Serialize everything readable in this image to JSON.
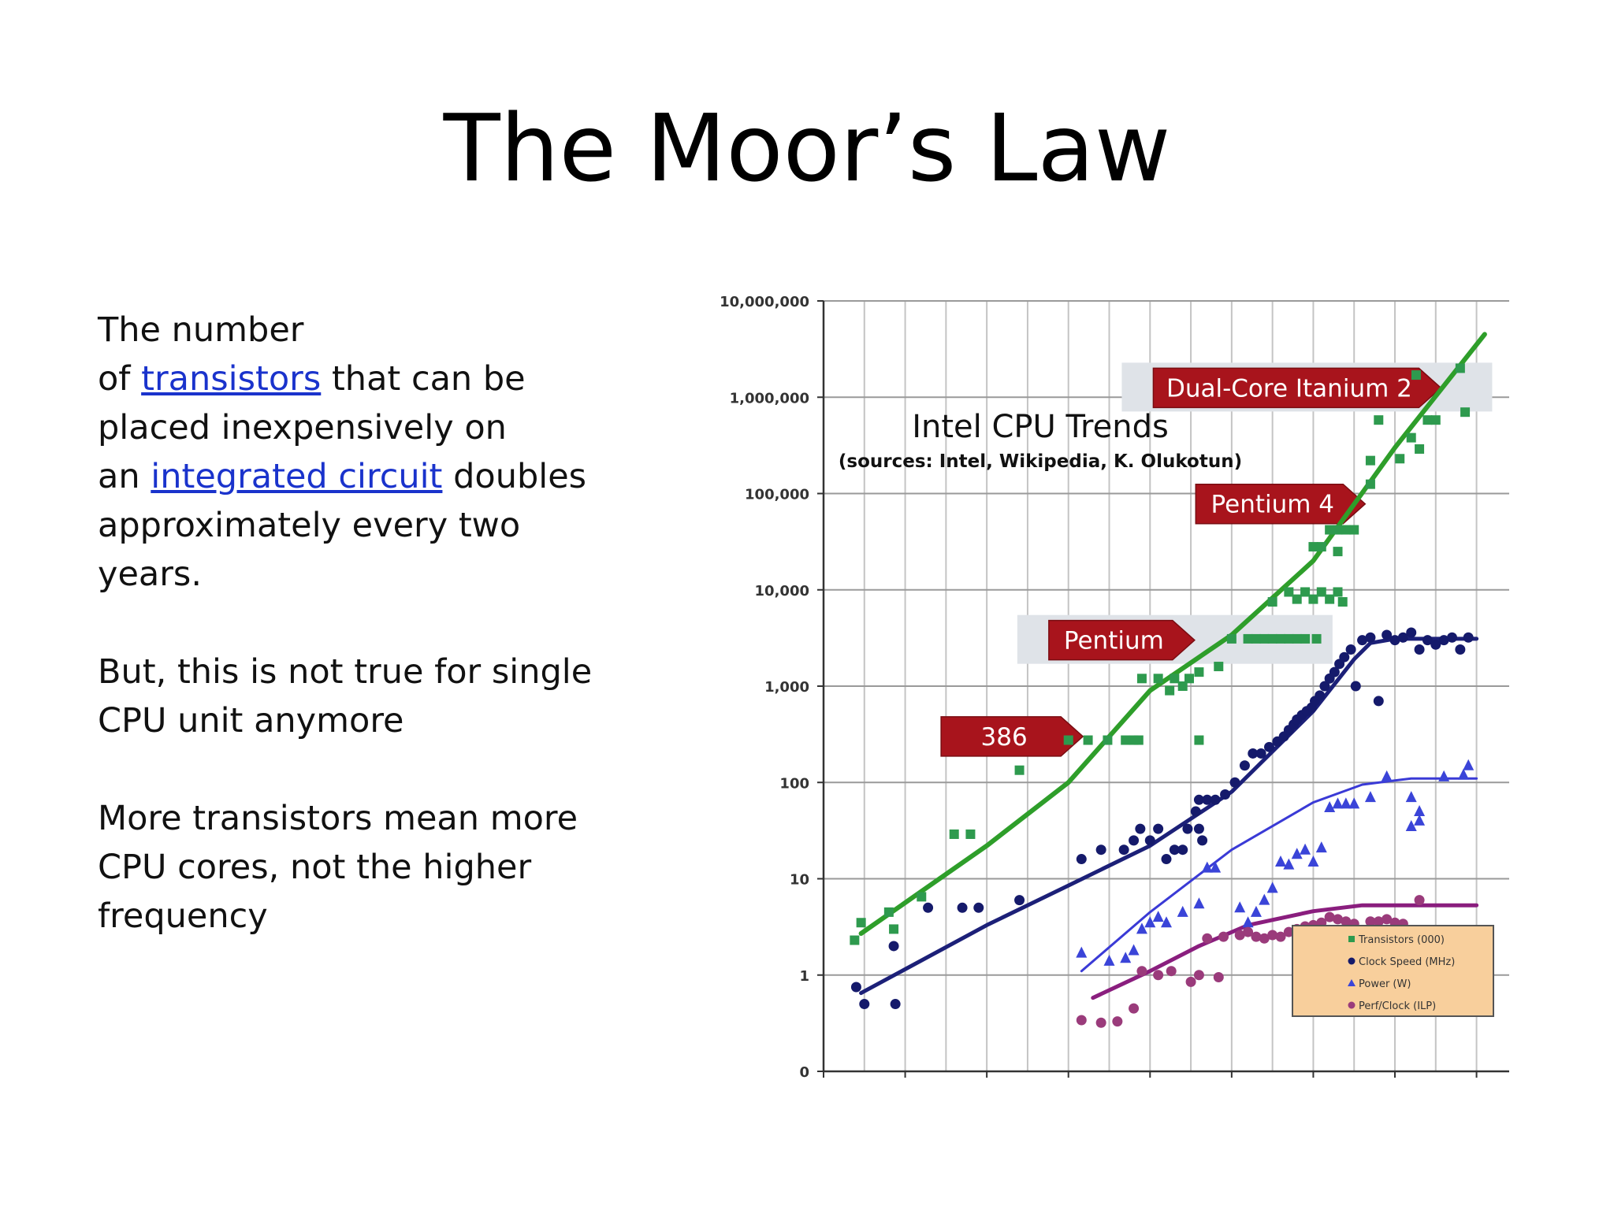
{
  "slide": {
    "title": "The Moor’s Law",
    "paragraph1": {
      "line1": "The number",
      "line2_before": "of ",
      "link1": "transistors",
      "line2_after": " that can be",
      "line3": "placed inexpensively on",
      "line4_before": "an ",
      "link2": "integrated circuit",
      "line4_after": " doubles",
      "line5": "approximately every two",
      "line6": "years."
    },
    "paragraph2": {
      "line1": "But, this is not true for single",
      "line2": "CPU unit anymore"
    },
    "paragraph3": {
      "line1": "More transistors mean more",
      "line2": "CPU cores, not the higher",
      "line3": "frequency"
    },
    "link_color": "#1a33cc"
  },
  "chart_data": {
    "type": "scatter",
    "title": "Intel CPU Trends",
    "subtitle": "(sources: Intel, Wikipedia, K. Olukotun)",
    "y_scale": "log",
    "ylim": [
      0.1,
      10000000
    ],
    "xlim": [
      1970,
      2012
    ],
    "x_ticks": [
      1970,
      1975,
      1980,
      1985,
      1990,
      1995,
      2000,
      2005,
      2010
    ],
    "y_ticks": [
      {
        "value": 0.1,
        "label": "0"
      },
      {
        "value": 1,
        "label": "1"
      },
      {
        "value": 10,
        "label": "10"
      },
      {
        "value": 100,
        "label": "100"
      },
      {
        "value": 1000,
        "label": "1,000"
      },
      {
        "value": 10000,
        "label": "10,000"
      },
      {
        "value": 100000,
        "label": "100,000"
      },
      {
        "value": 1000000,
        "label": "1,000,000"
      },
      {
        "value": 10000000,
        "label": "10,000,000"
      }
    ],
    "grid": true,
    "legend_placement": "bottom-right",
    "series": [
      {
        "name": "Transistors (000)",
        "marker": "square",
        "color": "#2e9a4e",
        "line_color": "#2e9e2a",
        "points": [
          [
            1971.9,
            2.3
          ],
          [
            1972.3,
            3.5
          ],
          [
            1974,
            4.5
          ],
          [
            1974.3,
            3
          ],
          [
            1976,
            6.5
          ],
          [
            1978,
            29
          ],
          [
            1979,
            29
          ],
          [
            1982,
            134
          ],
          [
            1985,
            275
          ],
          [
            1986.2,
            275
          ],
          [
            1987.4,
            275
          ],
          [
            1988.5,
            275
          ],
          [
            1989,
            275
          ],
          [
            1989.3,
            275
          ],
          [
            1989.5,
            1200
          ],
          [
            1990.5,
            1200
          ],
          [
            1991.2,
            900
          ],
          [
            1991.5,
            1200
          ],
          [
            1992,
            1000
          ],
          [
            1992.4,
            1200
          ],
          [
            1993,
            1400
          ],
          [
            1993,
            275
          ],
          [
            1994.2,
            1600
          ],
          [
            1995,
            3100
          ],
          [
            1996,
            3100
          ],
          [
            1996.5,
            3100
          ],
          [
            1997,
            3100
          ],
          [
            1997.5,
            3100
          ],
          [
            1998,
            3100
          ],
          [
            1998.5,
            3100
          ],
          [
            1999,
            3100
          ],
          [
            1999.5,
            3100
          ],
          [
            2000.2,
            3100
          ],
          [
            1997.5,
            7500
          ],
          [
            1998.5,
            9500
          ],
          [
            1999,
            8000
          ],
          [
            1999.5,
            9500
          ],
          [
            2000,
            8000
          ],
          [
            2000.5,
            9500
          ],
          [
            2001,
            8000
          ],
          [
            2001.5,
            9500
          ],
          [
            2001.8,
            7500
          ],
          [
            2000,
            28000
          ],
          [
            2000.5,
            28000
          ],
          [
            2001,
            42000
          ],
          [
            2001.5,
            42000
          ],
          [
            2002,
            42000
          ],
          [
            2002.5,
            42000
          ],
          [
            2001.5,
            25000
          ],
          [
            2003.5,
            125000
          ],
          [
            2004,
            580000
          ],
          [
            2003.5,
            220000
          ],
          [
            2005.3,
            230000
          ],
          [
            2006,
            380000
          ],
          [
            2006.5,
            290000
          ],
          [
            2007,
            580000
          ],
          [
            2007.5,
            580000
          ],
          [
            2006.3,
            1700000
          ],
          [
            2009,
            2000000
          ],
          [
            2009.3,
            700000
          ]
        ],
        "trend": [
          [
            1972.3,
            2.7
          ],
          [
            1980,
            22
          ],
          [
            1985,
            100
          ],
          [
            1990,
            900
          ],
          [
            1995,
            3400
          ],
          [
            2000,
            20000
          ],
          [
            2005,
            300000
          ],
          [
            2010.5,
            4500000
          ]
        ]
      },
      {
        "name": "Clock Speed (MHz)",
        "marker": "circle",
        "color": "#151a6b",
        "line_color": "#1c2078",
        "points": [
          [
            1972,
            0.75
          ],
          [
            1972.5,
            0.5
          ],
          [
            1974.4,
            0.5
          ],
          [
            1974.3,
            2
          ],
          [
            1976.4,
            5
          ],
          [
            1978.5,
            5
          ],
          [
            1979.5,
            5
          ],
          [
            1982,
            6
          ],
          [
            1985.8,
            16
          ],
          [
            1987,
            20
          ],
          [
            1988.4,
            20
          ],
          [
            1989,
            25
          ],
          [
            1989.4,
            33
          ],
          [
            1990,
            25
          ],
          [
            1990.5,
            33
          ],
          [
            1991,
            16
          ],
          [
            1991.5,
            20
          ],
          [
            1992,
            20
          ],
          [
            1992.3,
            33
          ],
          [
            1992.8,
            50
          ],
          [
            1993,
            66
          ],
          [
            1993.5,
            66
          ],
          [
            1993,
            33
          ],
          [
            1993.2,
            25
          ],
          [
            1994,
            66
          ],
          [
            1994.6,
            75
          ],
          [
            1995.2,
            100
          ],
          [
            1995.8,
            150
          ],
          [
            1996.3,
            200
          ],
          [
            1996.8,
            200
          ],
          [
            1997.3,
            233
          ],
          [
            1997.8,
            266
          ],
          [
            1998.2,
            300
          ],
          [
            1998.5,
            350
          ],
          [
            1998.8,
            400
          ],
          [
            1999,
            450
          ],
          [
            1999.3,
            500
          ],
          [
            1999.6,
            550
          ],
          [
            1999.9,
            600
          ],
          [
            2000.1,
            700
          ],
          [
            2000.4,
            800
          ],
          [
            2000.7,
            1000
          ],
          [
            2001,
            1200
          ],
          [
            2001.3,
            1400
          ],
          [
            2001.6,
            1700
          ],
          [
            2001.9,
            2000
          ],
          [
            2002.3,
            2400
          ],
          [
            2002.6,
            1000
          ],
          [
            2003,
            3000
          ],
          [
            2003.5,
            3200
          ],
          [
            2004,
            700
          ],
          [
            2004.5,
            3400
          ],
          [
            2005,
            3000
          ],
          [
            2005.5,
            3200
          ],
          [
            2006,
            3600
          ],
          [
            2006.5,
            2400
          ],
          [
            2007,
            3000
          ],
          [
            2007.5,
            2700
          ],
          [
            2008,
            3000
          ],
          [
            2008.5,
            3200
          ],
          [
            2009,
            2400
          ],
          [
            2009.5,
            3200
          ]
        ],
        "trend": [
          [
            1972.3,
            0.65
          ],
          [
            1980,
            3.3
          ],
          [
            1985,
            8.5
          ],
          [
            1990,
            22
          ],
          [
            1995,
            80
          ],
          [
            2000,
            550
          ],
          [
            2002.5,
            1900
          ],
          [
            2003.5,
            2800
          ],
          [
            2005,
            3100
          ],
          [
            2010,
            3100
          ]
        ]
      },
      {
        "name": "Power (W)",
        "marker": "triangle",
        "color": "#3a44d8",
        "line_color": "#3a3ad6",
        "points": [
          [
            1985.8,
            1.7
          ],
          [
            1987.5,
            1.4
          ],
          [
            1988.5,
            1.5
          ],
          [
            1989,
            1.8
          ],
          [
            1989.5,
            3
          ],
          [
            1990,
            3.5
          ],
          [
            1990.5,
            4
          ],
          [
            1991,
            3.5
          ],
          [
            1992,
            4.5
          ],
          [
            1993,
            5.5
          ],
          [
            1993.5,
            13
          ],
          [
            1994,
            13
          ],
          [
            1995.5,
            5
          ],
          [
            1996,
            3.5
          ],
          [
            1996.5,
            4.5
          ],
          [
            1997,
            6
          ],
          [
            1997.5,
            8
          ],
          [
            1998,
            15
          ],
          [
            1998.5,
            14
          ],
          [
            1999,
            18
          ],
          [
            1999.5,
            20
          ],
          [
            2000,
            15
          ],
          [
            2000.5,
            21
          ],
          [
            2001,
            55
          ],
          [
            2001.5,
            60
          ],
          [
            2002,
            60
          ],
          [
            2002.5,
            60
          ],
          [
            2003.5,
            70
          ],
          [
            2004.5,
            115
          ],
          [
            2006,
            70
          ],
          [
            2006.5,
            50
          ],
          [
            2006,
            35
          ],
          [
            2006.5,
            40
          ],
          [
            2008,
            115
          ],
          [
            2009.5,
            150
          ],
          [
            2009.2,
            120
          ]
        ],
        "trend": [
          [
            1985.8,
            1.1
          ],
          [
            1990,
            4.5
          ],
          [
            1995,
            20
          ],
          [
            2000,
            62
          ],
          [
            2003,
            95
          ],
          [
            2006,
            110
          ],
          [
            2010,
            110
          ]
        ]
      },
      {
        "name": "Perf/Clock (ILP)",
        "marker": "circle",
        "color": "#9a3b7b",
        "line_color": "#8a1e7e",
        "points": [
          [
            1985.8,
            0.34
          ],
          [
            1987,
            0.32
          ],
          [
            1988,
            0.33
          ],
          [
            1989,
            0.45
          ],
          [
            1989.5,
            1.1
          ],
          [
            1990.5,
            1.0
          ],
          [
            1991.3,
            1.1
          ],
          [
            1992.5,
            0.85
          ],
          [
            1993,
            1.0
          ],
          [
            1994.2,
            0.95
          ],
          [
            1993.5,
            2.4
          ],
          [
            1994.5,
            2.5
          ],
          [
            1995.5,
            2.6
          ],
          [
            1996,
            2.8
          ],
          [
            1996.5,
            2.5
          ],
          [
            1997,
            2.4
          ],
          [
            1997.5,
            2.6
          ],
          [
            1998,
            2.5
          ],
          [
            1998.5,
            2.8
          ],
          [
            1999,
            3.0
          ],
          [
            1999.5,
            3.2
          ],
          [
            2000,
            3.3
          ],
          [
            2000.5,
            3.5
          ],
          [
            2001,
            4.0
          ],
          [
            2001.5,
            3.8
          ],
          [
            2002,
            3.6
          ],
          [
            2002.5,
            3.4
          ],
          [
            2003.5,
            3.6
          ],
          [
            2004,
            3.6
          ],
          [
            2004.5,
            3.8
          ],
          [
            2005,
            3.5
          ],
          [
            2005.5,
            3.4
          ],
          [
            2006.5,
            6.0
          ]
        ],
        "trend": [
          [
            1986.5,
            0.58
          ],
          [
            1990,
            1.1
          ],
          [
            1993,
            2.0
          ],
          [
            1996,
            3.3
          ],
          [
            2000,
            4.6
          ],
          [
            2003,
            5.3
          ],
          [
            2010,
            5.3
          ]
        ]
      }
    ],
    "annotations": [
      {
        "label": "386",
        "x": 1977.2,
        "y": 300
      },
      {
        "label": "Pentium",
        "x": 1983.8,
        "y": 3000
      },
      {
        "label": "Pentium 4",
        "x": 1992.8,
        "y": 78000
      },
      {
        "label": "Dual-Core Itanium 2",
        "x": 1990.2,
        "y": 1250000
      }
    ]
  }
}
